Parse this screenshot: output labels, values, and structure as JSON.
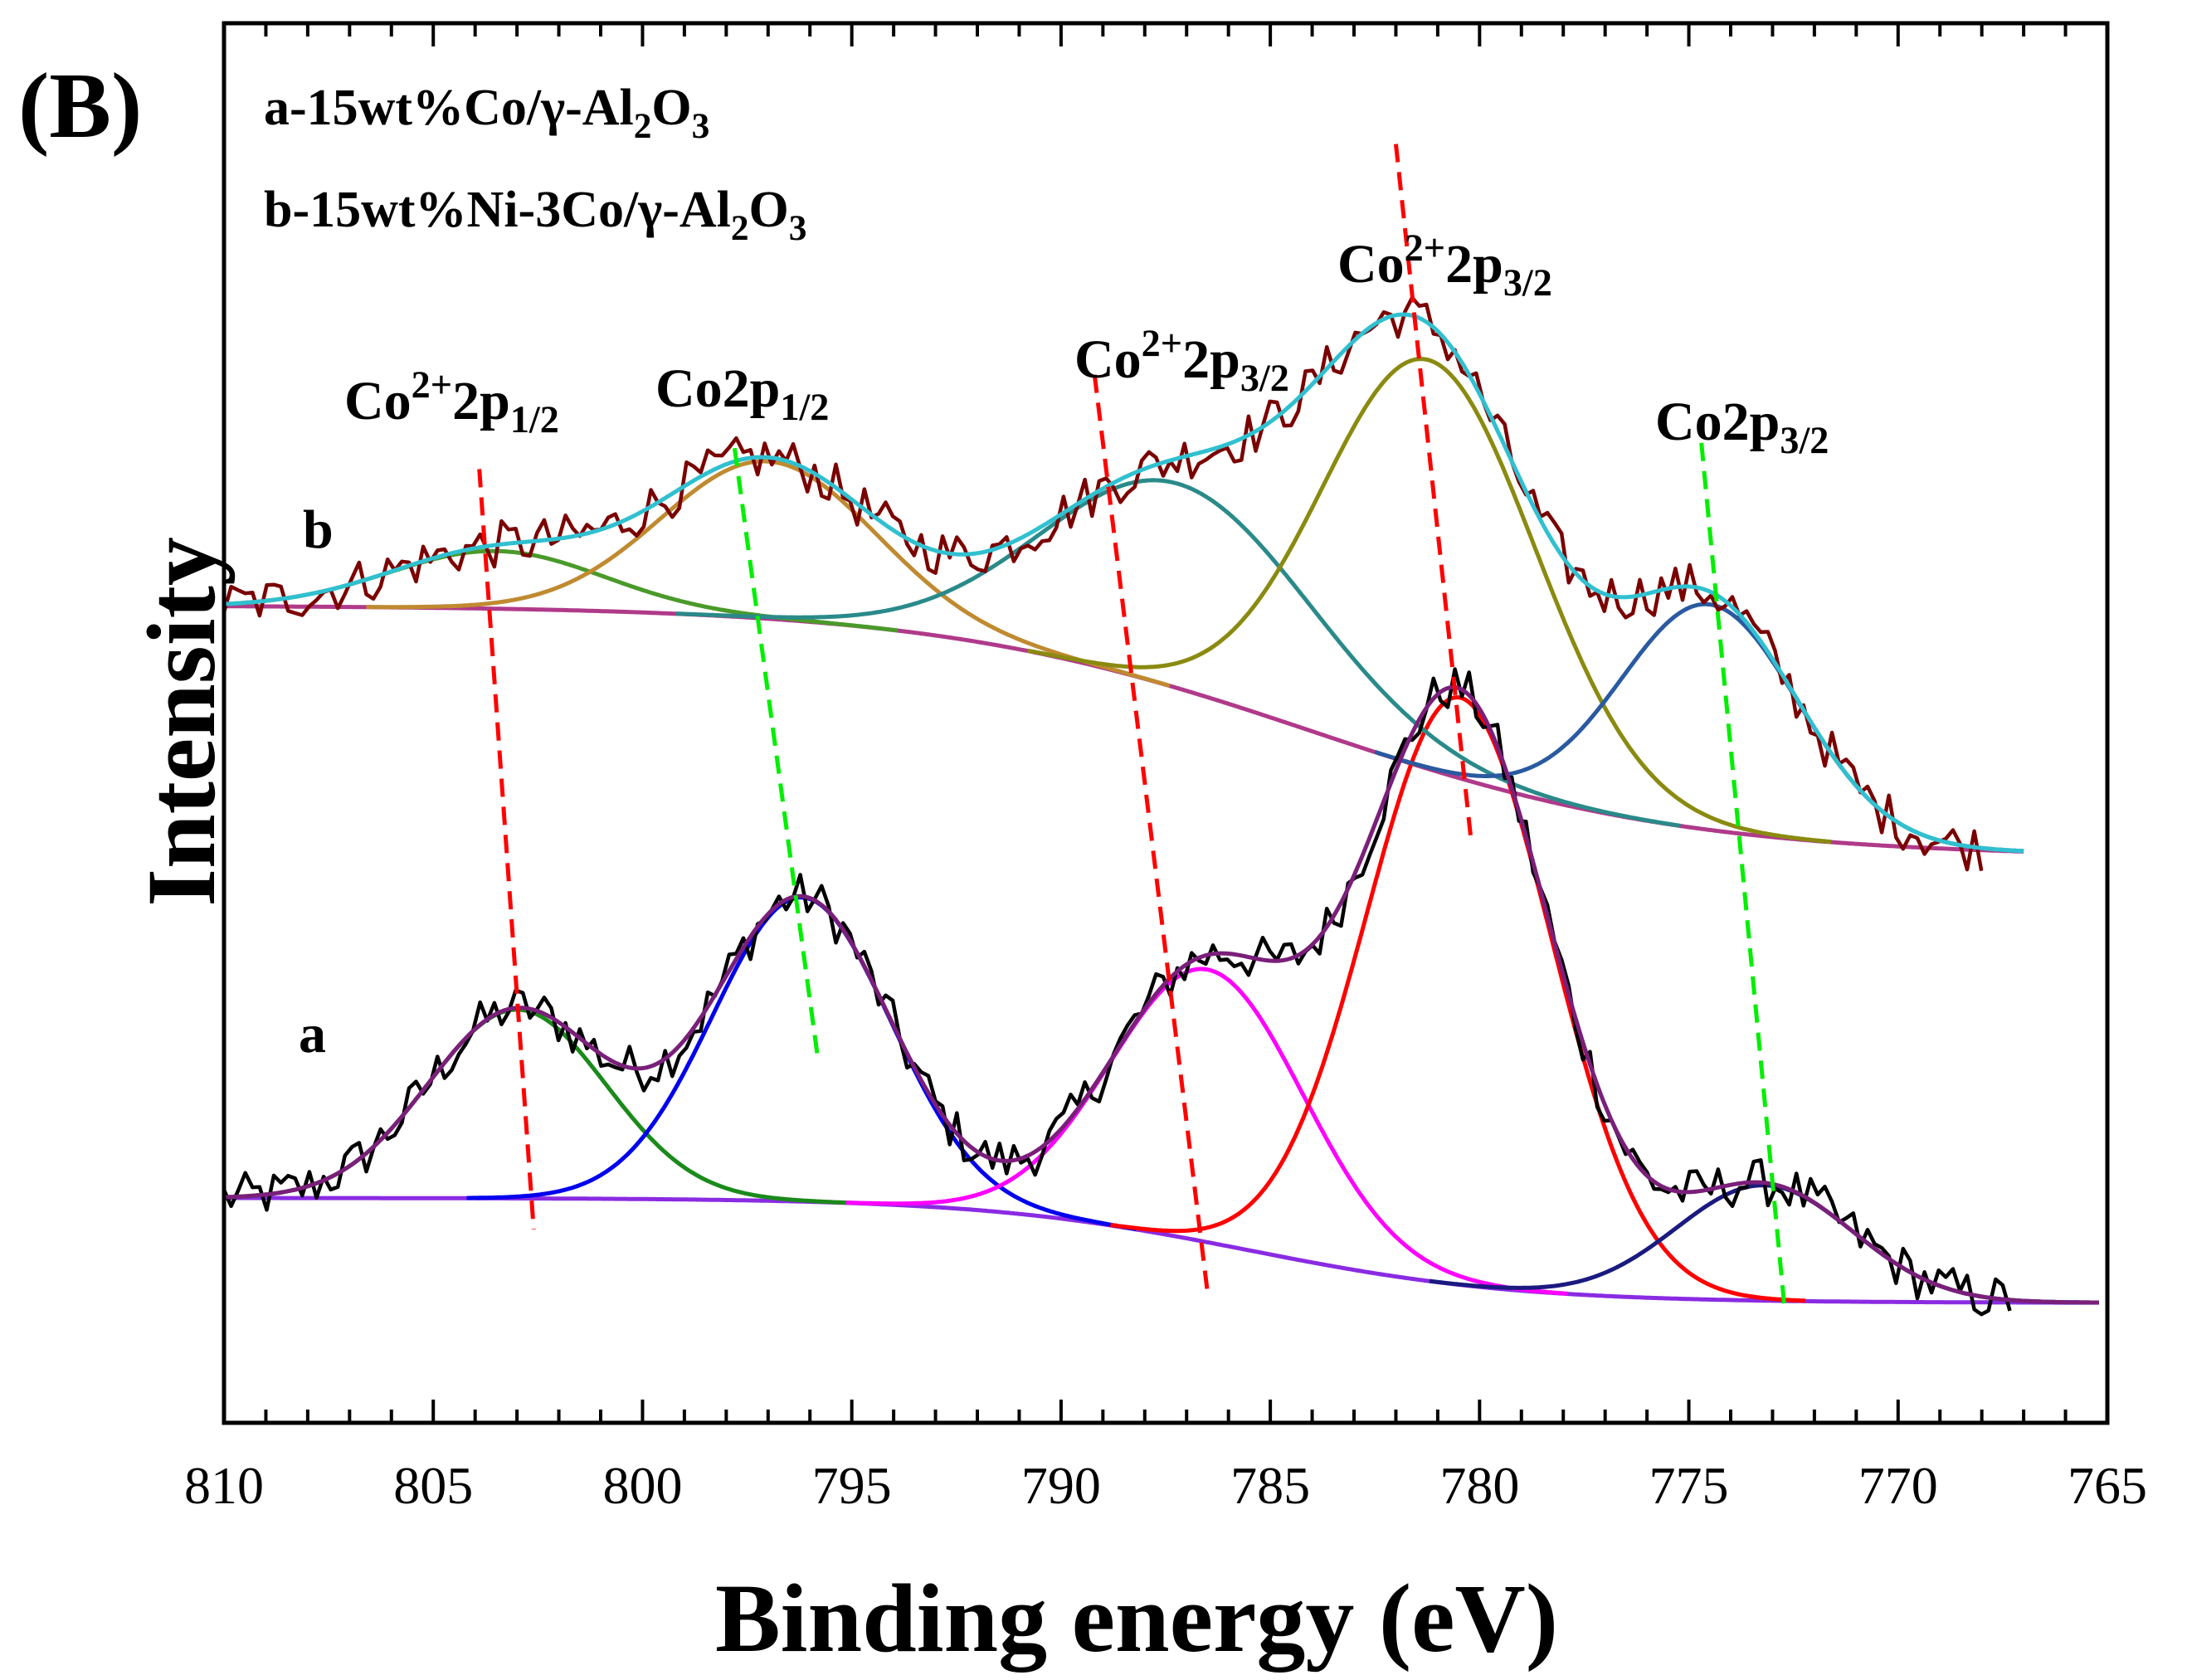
{
  "chart_data": {
    "type": "line",
    "title": "",
    "panel_label": "(B)",
    "xlabel": "Binding energy (eV)",
    "ylabel": "Intensity",
    "xlim": [
      810,
      765
    ],
    "x_reversed": true,
    "y_ticks_shown": false,
    "grid": false,
    "x_ticks": [
      810,
      805,
      800,
      795,
      790,
      785,
      780,
      775,
      770,
      765
    ],
    "legend": {
      "placement": "top-left",
      "entries": [
        {
          "text": "a-15wt%Co/γ-Al",
          "sub1": "2",
          "mid": "O",
          "sub2": "3"
        },
        {
          "text": "b-15wt%Ni-3Co/γ-Al",
          "sub1": "2",
          "mid": "O",
          "sub2": "3"
        }
      ]
    },
    "curve_labels": {
      "a": "a",
      "b": "b"
    },
    "series": [
      {
        "name": "a",
        "x_range": [
          810,
          765.2
        ],
        "x_raw_end": 767.2,
        "offset": 0,
        "noise": 0.045,
        "background": {
          "high": 0.22,
          "low": 0.02,
          "center": 785.5,
          "width": 3.2
        },
        "components": [
          {
            "name": "Co2+ 2p1/2 (a)",
            "center": 803.0,
            "height": 0.36,
            "fwhm": 5.0,
            "color": "#1a8a1a"
          },
          {
            "name": "Co 2p1/2 (a)",
            "center": 796.2,
            "height": 0.58,
            "fwhm": 5.0,
            "color": "#0000ee"
          },
          {
            "name": "Co2+ 2p3/2 satellite (a)",
            "center": 786.5,
            "height": 0.52,
            "fwhm": 5.4,
            "color": "#ff00ff"
          },
          {
            "name": "Co2+ 2p3/2 (a)",
            "center": 780.5,
            "height": 1.12,
            "fwhm": 5.2,
            "color": "#ff0000"
          },
          {
            "name": "Co 2p3/2 (a)",
            "center": 773.2,
            "height": 0.22,
            "fwhm": 5.0,
            "color": "#1a1a80"
          }
        ],
        "raw_color": "#000000",
        "envelope_color": "#7a1f7a",
        "background_color": "#8a2be2"
      },
      {
        "name": "b",
        "x_range": [
          810,
          767.0
        ],
        "x_raw_end": 768.0,
        "offset": 1.13,
        "noise": 0.045,
        "background": {
          "high": 0.22,
          "low": -0.26,
          "center": 784.0,
          "width": 4.5
        },
        "components": [
          {
            "name": "Co2+ 2p1/2 (b)",
            "center": 803.5,
            "height": 0.11,
            "fwhm": 6.0,
            "color": "#4a9a2a"
          },
          {
            "name": "Co 2p1/2 (b)",
            "center": 797.0,
            "height": 0.3,
            "fwhm": 6.0,
            "color": "#c08a30"
          },
          {
            "name": "Co2+ 2p3/2 satellite (b)",
            "center": 787.2,
            "height": 0.39,
            "fwhm": 7.5,
            "color": "#2a8a8a"
          },
          {
            "name": "Co2+ 2p3/2 (b)",
            "center": 781.2,
            "height": 0.78,
            "fwhm": 6.0,
            "color": "#8a8a10"
          },
          {
            "name": "Co 2p3/2 (b)",
            "center": 774.5,
            "height": 0.43,
            "fwhm": 5.0,
            "color": "#2a5aa0"
          }
        ],
        "raw_color": "#7a0000",
        "envelope_color": "#30c0d0",
        "background_color": "#b03a8a"
      }
    ],
    "annotations": [
      {
        "label": "Co²⁺2p₁/₂",
        "base": "Co",
        "sup": "2+",
        "main": "2p",
        "sub": "1/2",
        "color": "#ff0000",
        "line_x": [
          803.9,
          802.6
        ],
        "line_y": [
          1.61,
          0.16
        ]
      },
      {
        "label": "Co2p₁/₂",
        "base": "Co2p",
        "sup": "",
        "main": "",
        "sub": "1/2",
        "color": "#00ee00",
        "line_x": [
          797.8,
          795.8
        ],
        "line_y": [
          1.65,
          0.48
        ]
      },
      {
        "label": "Co²⁺2p₃/₂",
        "base": "Co",
        "sup": "2+",
        "main": "2p",
        "sub": "3/2",
        "color": "#ff0000",
        "line_x": [
          789.2,
          786.5
        ],
        "line_y": [
          1.79,
          0.04
        ]
      },
      {
        "label": "Co²⁺2p₃/₂",
        "base": "Co",
        "sup": "2+",
        "main": "2p",
        "sub": "3/2",
        "color": "#ff0000",
        "line_x": [
          782.0,
          780.2
        ],
        "line_y": [
          2.23,
          0.9
        ]
      },
      {
        "label": "Co2p₃/₂",
        "base": "Co2p",
        "sup": "",
        "main": "",
        "sub": "3/2",
        "color": "#00ee00",
        "line_x": [
          774.7,
          772.7
        ],
        "line_y": [
          1.66,
          0.0
        ]
      }
    ]
  }
}
